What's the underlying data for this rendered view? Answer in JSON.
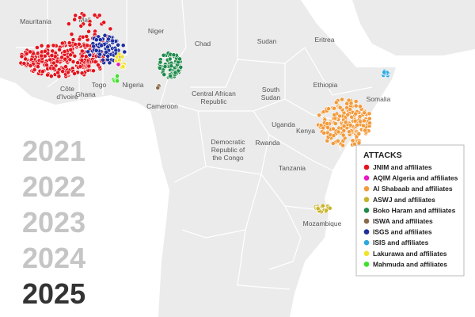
{
  "map": {
    "labels": [
      {
        "lines": [
          "Mauritania"
        ]
      },
      {
        "lines": [
          "Mali"
        ]
      },
      {
        "lines": [
          "Niger"
        ]
      },
      {
        "lines": [
          "Chad"
        ]
      },
      {
        "lines": [
          "Sudan"
        ]
      },
      {
        "lines": [
          "Eritrea"
        ]
      },
      {
        "lines": [
          "Côte",
          "d'Ivoire"
        ]
      },
      {
        "lines": [
          "Ghana"
        ]
      },
      {
        "lines": [
          "Togo"
        ]
      },
      {
        "lines": [
          "Nigeria"
        ]
      },
      {
        "lines": [
          "Cameroon"
        ]
      },
      {
        "lines": [
          "Central African",
          "Republic"
        ]
      },
      {
        "lines": [
          "South",
          "Sudan"
        ]
      },
      {
        "lines": [
          "Ethiopia"
        ]
      },
      {
        "lines": [
          "Somalia"
        ]
      },
      {
        "lines": [
          "Uganda"
        ]
      },
      {
        "lines": [
          "Kenya"
        ]
      },
      {
        "lines": [
          "Rwanda"
        ]
      },
      {
        "lines": [
          "Democratic",
          "Republic of",
          "the Congo"
        ]
      },
      {
        "lines": [
          "Tanzania"
        ]
      },
      {
        "lines": [
          "Mozambique"
        ]
      }
    ],
    "years": [
      "2021",
      "2022",
      "2023",
      "2024",
      "2025"
    ],
    "legend": {
      "title": "ATTACKS",
      "items": [
        {
          "label": "JNIM and affiliates",
          "color": "#e3141e"
        },
        {
          "label": "AQIM Algeria and affiliates",
          "color": "#e619c8"
        },
        {
          "label": "Al Shabaab and affiliates",
          "color": "#f39a3a"
        },
        {
          "label": "ASWJ and affiliates",
          "color": "#c8b228"
        },
        {
          "label": "Boko Haram and affiliates",
          "color": "#1f8a4a"
        },
        {
          "label": "ISWA and affiliates",
          "color": "#8a6a4a"
        },
        {
          "label": "ISGS and affiliates",
          "color": "#1f2fa0"
        },
        {
          "label": "ISIS and affiliates",
          "color": "#2aa8e0"
        },
        {
          "label": "Lakurawa and affiliates",
          "color": "#f2e22a"
        },
        {
          "label": "Mahmuda and affiliates",
          "color": "#3ee02a"
        }
      ]
    }
  }
}
